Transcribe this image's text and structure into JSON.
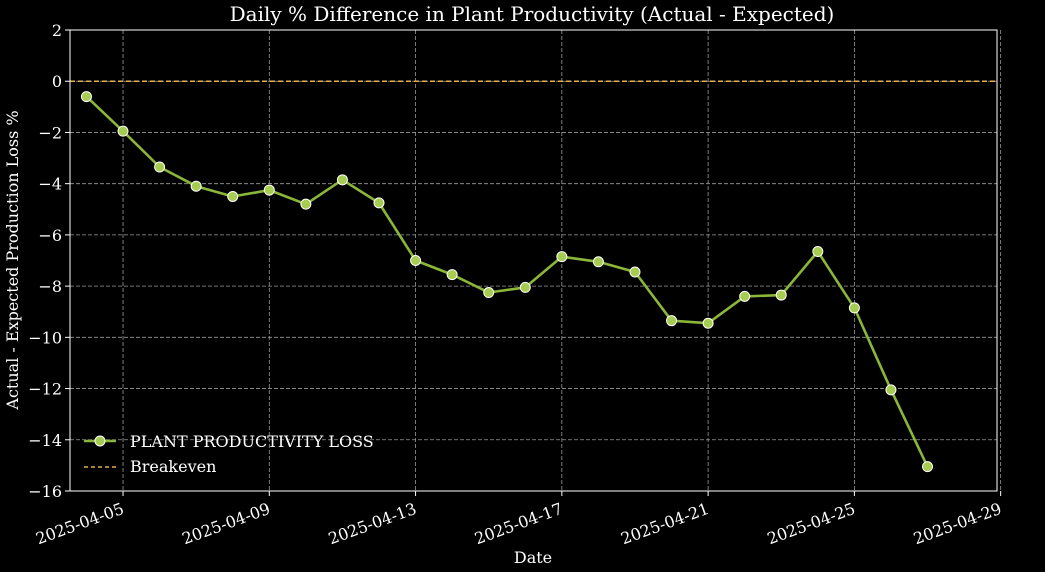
{
  "chart_data": {
    "type": "line",
    "title": "Daily % Difference in Plant Productivity (Actual - Expected)",
    "xlabel": "Date",
    "ylabel": "Actual - Expected Production Loss %",
    "x_range": [
      "2025-04-03",
      "2025-04-28"
    ],
    "ylim": [
      -16,
      2
    ],
    "x_ticks": [
      "2025-04-05",
      "2025-04-09",
      "2025-04-13",
      "2025-04-17",
      "2025-04-21",
      "2025-04-25",
      "2025-04-29"
    ],
    "y_ticks": [
      2,
      0,
      -2,
      -4,
      -6,
      -8,
      -10,
      -12,
      -14,
      -16
    ],
    "grid": true,
    "legend_position": "lower-left",
    "series": [
      {
        "name": "PLANT PRODUCTIVITY LOSS",
        "color": "#8ab63a",
        "marker": "circle",
        "x": [
          "2025-04-04",
          "2025-04-05",
          "2025-04-06",
          "2025-04-07",
          "2025-04-08",
          "2025-04-09",
          "2025-04-10",
          "2025-04-11",
          "2025-04-12",
          "2025-04-13",
          "2025-04-14",
          "2025-04-15",
          "2025-04-16",
          "2025-04-17",
          "2025-04-18",
          "2025-04-19",
          "2025-04-20",
          "2025-04-21",
          "2025-04-22",
          "2025-04-23",
          "2025-04-24",
          "2025-04-25",
          "2025-04-26",
          "2025-04-27"
        ],
        "values": [
          -0.6,
          -1.95,
          -3.35,
          -4.1,
          -4.5,
          -4.25,
          -4.8,
          -3.85,
          -4.75,
          -7.0,
          -7.55,
          -8.25,
          -8.05,
          -6.85,
          -7.05,
          -7.45,
          -9.35,
          -9.45,
          -8.4,
          -8.35,
          -6.65,
          -8.85,
          -12.05,
          -15.05
        ]
      },
      {
        "name": "Breakeven",
        "color": "#e0b050",
        "style": "dashed",
        "y": 0
      }
    ]
  }
}
